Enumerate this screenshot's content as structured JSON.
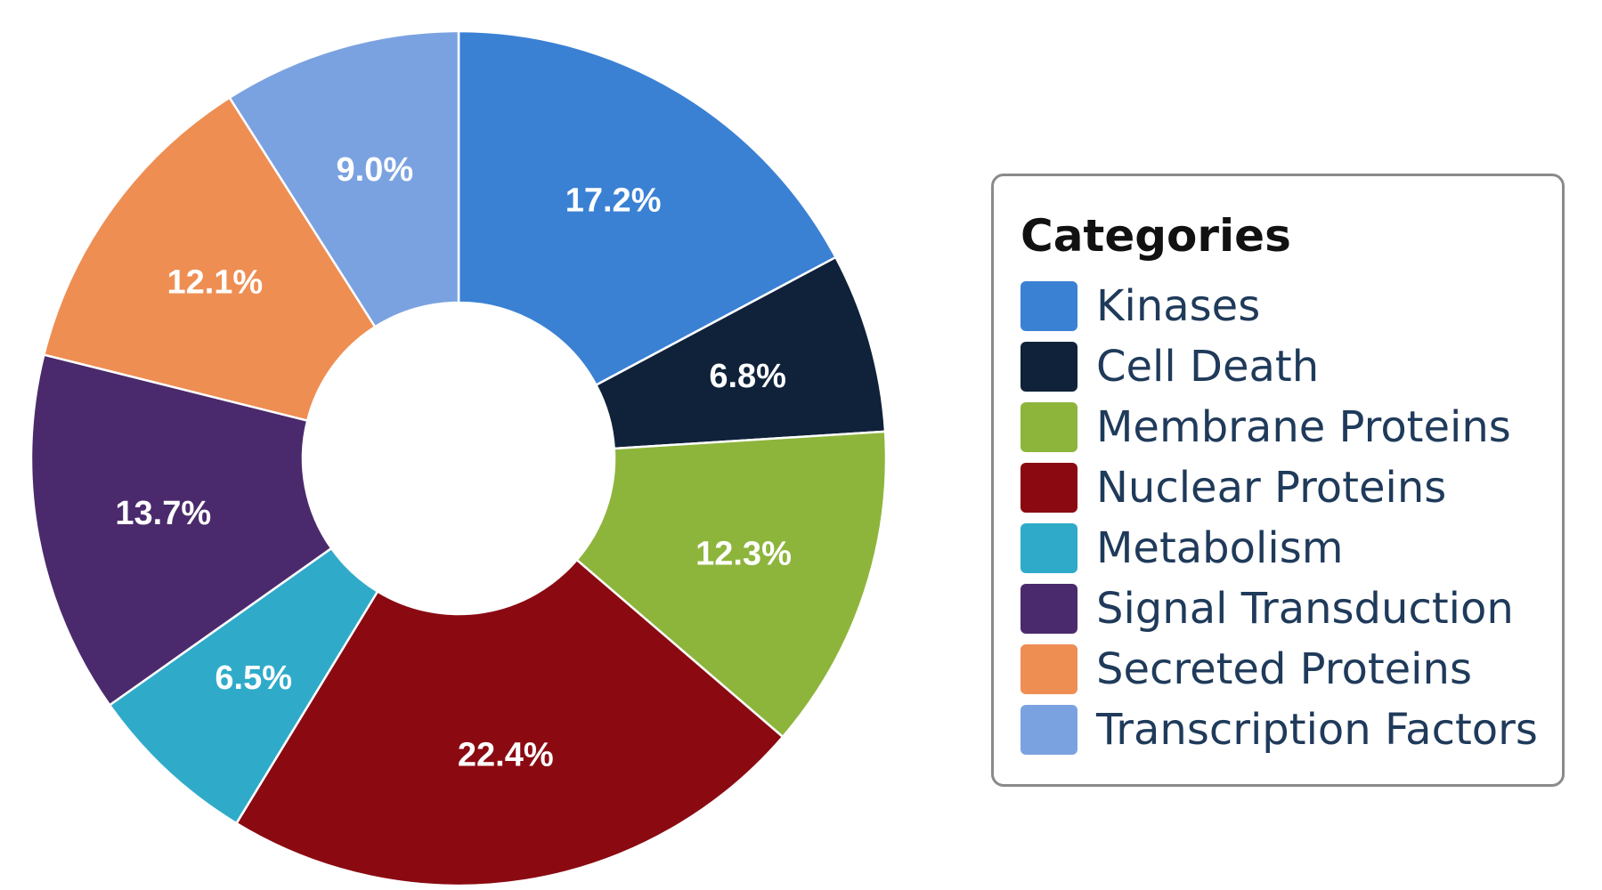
{
  "chart_data": {
    "type": "pie",
    "donut": true,
    "legend_title": "Categories",
    "legend_position": "right",
    "slices": [
      {
        "label": "Kinases",
        "value": 17.2,
        "display": "17.2%",
        "color": "#3a81d4"
      },
      {
        "label": "Cell Death",
        "value": 6.8,
        "display": "6.8%",
        "color": "#10223a"
      },
      {
        "label": "Membrane Proteins",
        "value": 12.3,
        "display": "12.3%",
        "color": "#8db53c"
      },
      {
        "label": "Nuclear Proteins",
        "value": 22.4,
        "display": "22.4%",
        "color": "#8b0a12"
      },
      {
        "label": "Metabolism",
        "value": 6.5,
        "display": "6.5%",
        "color": "#2fabc9"
      },
      {
        "label": "Signal Transduction",
        "value": 13.7,
        "display": "13.7%",
        "color": "#4a2a6c"
      },
      {
        "label": "Secreted Proteins",
        "value": 12.1,
        "display": "12.1%",
        "color": "#ee8e53"
      },
      {
        "label": "Transcription Factors",
        "value": 9.0,
        "display": "9.0%",
        "color": "#7ba2e0"
      }
    ]
  }
}
